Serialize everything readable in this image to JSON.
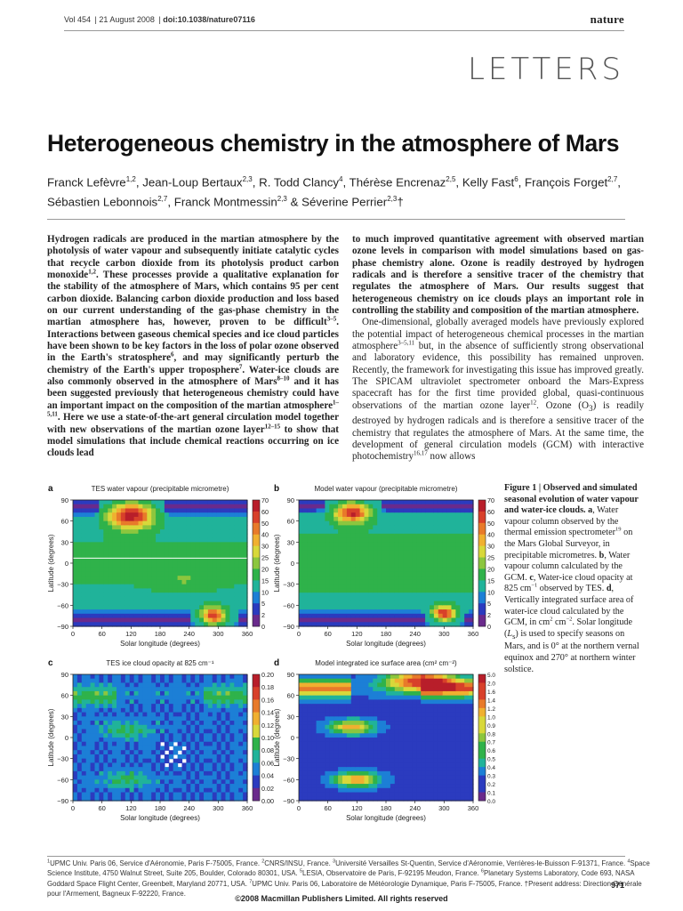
{
  "header": {
    "volume": "Vol 454",
    "date": "21 August 2008",
    "doi": "doi:10.1038/nature07116",
    "journal": "nature",
    "section": "LETTERS"
  },
  "title": "Heterogeneous chemistry in the atmosphere of Mars",
  "authors": [
    {
      "name": "Franck Lefèvre",
      "aff": "1,2",
      "sep": ", "
    },
    {
      "name": "Jean-Loup Bertaux",
      "aff": "2,3",
      "sep": ", "
    },
    {
      "name": "R. Todd Clancy",
      "aff": "4",
      "sep": ", "
    },
    {
      "name": "Thérèse Encrenaz",
      "aff": "2,5",
      "sep": ", "
    },
    {
      "name": "Kelly Fast",
      "aff": "6",
      "sep": ", "
    },
    {
      "name": "François Forget",
      "aff": "2,7",
      "sep": ", "
    },
    {
      "name": "Sébastien Lebonnois",
      "aff": "2,7",
      "sep": ", "
    },
    {
      "name": "Franck Montmessin",
      "aff": "2,3",
      "sep": " & "
    },
    {
      "name": "Séverine Perrier",
      "aff": "2,3",
      "sep": "†"
    }
  ],
  "abstract_html": "Hydrogen radicals are produced in the martian atmosphere by the photolysis of water vapour and subsequently initiate catalytic cycles that recycle carbon dioxide from its photolysis product carbon monoxide<sup>1,2</sup>. These processes provide a qualitative explanation for the stability of the atmosphere of Mars, which contains 95 per cent carbon dioxide. Balancing carbon dioxide production and loss based on our current understanding of the gas-phase chemistry in the martian atmosphere has, however, proven to be difficult<sup>3–5</sup>. Interactions between gaseous chemical species and ice cloud particles have been shown to be key factors in the loss of polar ozone observed in the Earth's stratosphere<sup>6</sup>, and may significantly perturb the chemistry of the Earth's upper troposphere<sup>7</sup>. Water-ice clouds are also commonly observed in the atmosphere of Mars<sup>8–10</sup> and it has been suggested previously that heterogeneous chemistry could have an important impact on the composition of the martian atmosphere<sup>1–5,11</sup>. Here we use a state-of-the-art general circulation model together with new observations of the martian ozone layer<sup>12–15</sup> to show that model simulations that include chemical reactions occurring on ice clouds lead",
  "right_bold_html": "to much improved quantitative agreement with observed martian ozone levels in comparison with model simulations based on gas-phase chemistry alone. Ozone is readily destroyed by hydrogen radicals and is therefore a sensitive tracer of the chemistry that regulates the atmosphere of Mars. Our results suggest that heterogeneous chemistry on ice clouds plays an important role in controlling the stability and composition of the martian atmosphere.",
  "right_body_html": "One-dimensional, globally averaged models have previously explored the potential impact of heterogeneous chemical processes in the martian atmosphere<sup>3–5,11</sup> but, in the absence of sufficiently strong observational and laboratory evidence, this possibility has remained unproven. Recently, the framework for investigating this issue has improved greatly. The SPICAM ultraviolet spectrometer onboard the Mars-Express spacecraft has for the first time provided global, quasi-continuous observations of the martian ozone layer<sup>12</sup>. Ozone (O<sub>3</sub>) is readily destroyed by hydrogen radicals and is therefore a sensitive tracer of the chemistry that regulates the atmosphere of Mars. At the same time, the development of general circulation models (GCM) with interactive photochemistry<sup>16,17</sup> now allows",
  "figure": {
    "caption_html": "<b>Figure 1 | Observed and simulated seasonal evolution of water vapour and water-ice clouds. a</b>, Water vapour column observed by the thermal emission spectrometer<sup>19</sup> on the Mars Global Surveyor, in precipitable micrometres. <b>b</b>, Water vapour column calculated by the GCM. <b>c</b>, Water-ice cloud opacity at 825 cm<sup>−1</sup> observed by TES. <b>d</b>, Vertically integrated surface area of water-ice cloud calculated by the GCM, in cm<sup>2</sup> cm<sup>−2</sup>. Solar longitude (<i>L</i><sub>s</sub>) is used to specify seasons on Mars, and is 0° at the northern vernal equinox and 270° at northern winter solstice.",
    "panels": [
      {
        "letter": "a",
        "title": "TES water vapour (precipitable micrometre)",
        "xlabel": "Solar longitude (degrees)",
        "ylabel": "Latitude (degrees)",
        "xticks": [
          "0",
          "60",
          "120",
          "180",
          "240",
          "300",
          "360"
        ],
        "yticks": [
          "90",
          "60",
          "30",
          "0",
          "−30",
          "−60",
          "−90"
        ],
        "cbar": [
          "70",
          "60",
          "50",
          "40",
          "30",
          "25",
          "20",
          "15",
          "10",
          "5",
          "2",
          "0"
        ]
      },
      {
        "letter": "b",
        "title": "Model water vapour (precipitable micrometre)",
        "xlabel": "Solar longitude (degrees)",
        "ylabel": "Latitude (degrees)",
        "xticks": [
          "0",
          "60",
          "120",
          "180",
          "240",
          "300",
          "360"
        ],
        "yticks": [
          "90",
          "60",
          "30",
          "0",
          "−30",
          "−60",
          "−90"
        ],
        "cbar": [
          "70",
          "60",
          "50",
          "40",
          "30",
          "25",
          "20",
          "15",
          "10",
          "5",
          "2",
          "0"
        ]
      },
      {
        "letter": "c",
        "title": "TES ice cloud opacity at 825 cm⁻¹",
        "xlabel": "Solar longitude (degrees)",
        "ylabel": "Latitude (degrees)",
        "xticks": [
          "0",
          "60",
          "120",
          "180",
          "240",
          "300",
          "360"
        ],
        "yticks": [
          "90",
          "60",
          "30",
          "0",
          "−30",
          "−60",
          "−90"
        ],
        "cbar": [
          "0.20",
          "0.18",
          "0.16",
          "0.14",
          "0.12",
          "0.10",
          "0.08",
          "0.06",
          "0.04",
          "0.02",
          "0.00"
        ]
      },
      {
        "letter": "d",
        "title": "Model integrated ice surface area (cm² cm⁻²)",
        "xlabel": "Solar longitude (degrees)",
        "ylabel": "Latitude (degrees)",
        "xticks": [
          "0",
          "60",
          "120",
          "180",
          "240",
          "300",
          "360"
        ],
        "yticks": [
          "90",
          "60",
          "30",
          "0",
          "−30",
          "−60",
          "−90"
        ],
        "cbar": [
          "5.0",
          "2.0",
          "1.6",
          "1.4",
          "1.2",
          "1.0",
          "0.9",
          "0.8",
          "0.7",
          "0.6",
          "0.5",
          "0.4",
          "0.3",
          "0.2",
          "0.1",
          "0.0"
        ]
      }
    ],
    "colors": [
      "#6a2a8c",
      "#2b3bbf",
      "#1c7fd6",
      "#20b39a",
      "#2fb24a",
      "#8cc63e",
      "#d8d83a",
      "#f0b030",
      "#e87a2a",
      "#d8402a",
      "#b81e2a"
    ]
  },
  "footnotes_html": "<sup>1</sup>UPMC Univ. Paris 06, Service d'Aéronomie, Paris F-75005, France. <sup>2</sup>CNRS/INSU, France. <sup>3</sup>Université Versailles St-Quentin, Service d'Aéronomie, Verrières-le-Buisson F-91371, France. <sup>4</sup>Space Science Institute, 4750 Walnut Street, Suite 205, Boulder, Colorado 80301, USA. <sup>5</sup>LESIA, Observatoire de Paris, F-92195 Meudon, France. <sup>6</sup>Planetary Systems Laboratory, Code 693, NASA Goddard Space Flight Center, Greenbelt, Maryland 20771, USA. <sup>7</sup>UPMC Univ. Paris 06, Laboratoire de Météorologie Dynamique, Paris F-75005, France. †Present address: Direction Générale pour l'Armement, Bagneux F-92220, France.",
  "page_number": "971",
  "copyright": "©2008 Macmillan Publishers Limited. All rights reserved"
}
